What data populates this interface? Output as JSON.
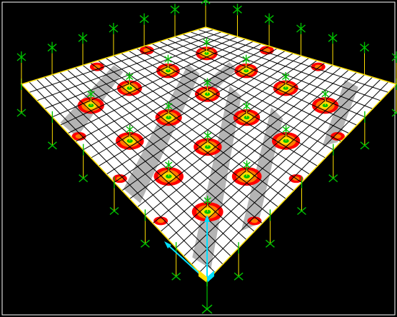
{
  "viewport": {
    "background_color": "#000000",
    "frame_color": "#FFFFFF"
  },
  "slab": {
    "grid_divisions": 24,
    "fill_color": "#FFFFFF",
    "grid_line_color": "#000000",
    "edge_color": "#FFE000",
    "stress_band_color": "#B0B0B0"
  },
  "columns": {
    "rows": 4,
    "cols": 4,
    "edge_supports_per_side": 6,
    "support_color": "#00C000",
    "support_line_color": "#FFE000",
    "contour_colors": [
      "#FF0000",
      "#FF7A00",
      "#FFE000",
      "#00C000"
    ]
  },
  "axes": {
    "axis_color": "#00E0FF",
    "corner_marker_color": "#FFE000",
    "vertical_support_color": "#00C000"
  }
}
